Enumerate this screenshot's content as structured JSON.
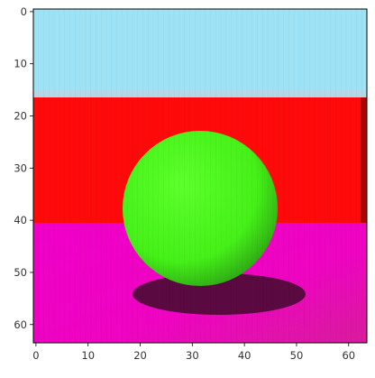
{
  "image": {
    "kind": "rendered-scene",
    "pixel_grid": [
      64,
      64
    ],
    "palette": {
      "sky": "#9ee3f5",
      "horizon_band": "#b4d9e6",
      "wall": "#ff0a0a",
      "wall_edge": "#b00000",
      "floor": "#f000c8",
      "floor_far": "#d81c9c",
      "ball": "#4cff1a",
      "ball_shade": "#2fa814",
      "shadow": "#5a0a40"
    },
    "subject": "green-sphere"
  },
  "axes": {
    "xlim": [
      -0.5,
      63.5
    ],
    "ylim": [
      63.5,
      -0.5
    ],
    "xticks": [
      0,
      10,
      20,
      30,
      40,
      50,
      60
    ],
    "yticks": [
      0,
      10,
      20,
      30,
      40,
      50,
      60
    ],
    "xtick_labels": [
      "0",
      "10",
      "20",
      "30",
      "40",
      "50",
      "60"
    ],
    "ytick_labels": [
      "0",
      "10",
      "20",
      "30",
      "40",
      "50",
      "60"
    ]
  }
}
